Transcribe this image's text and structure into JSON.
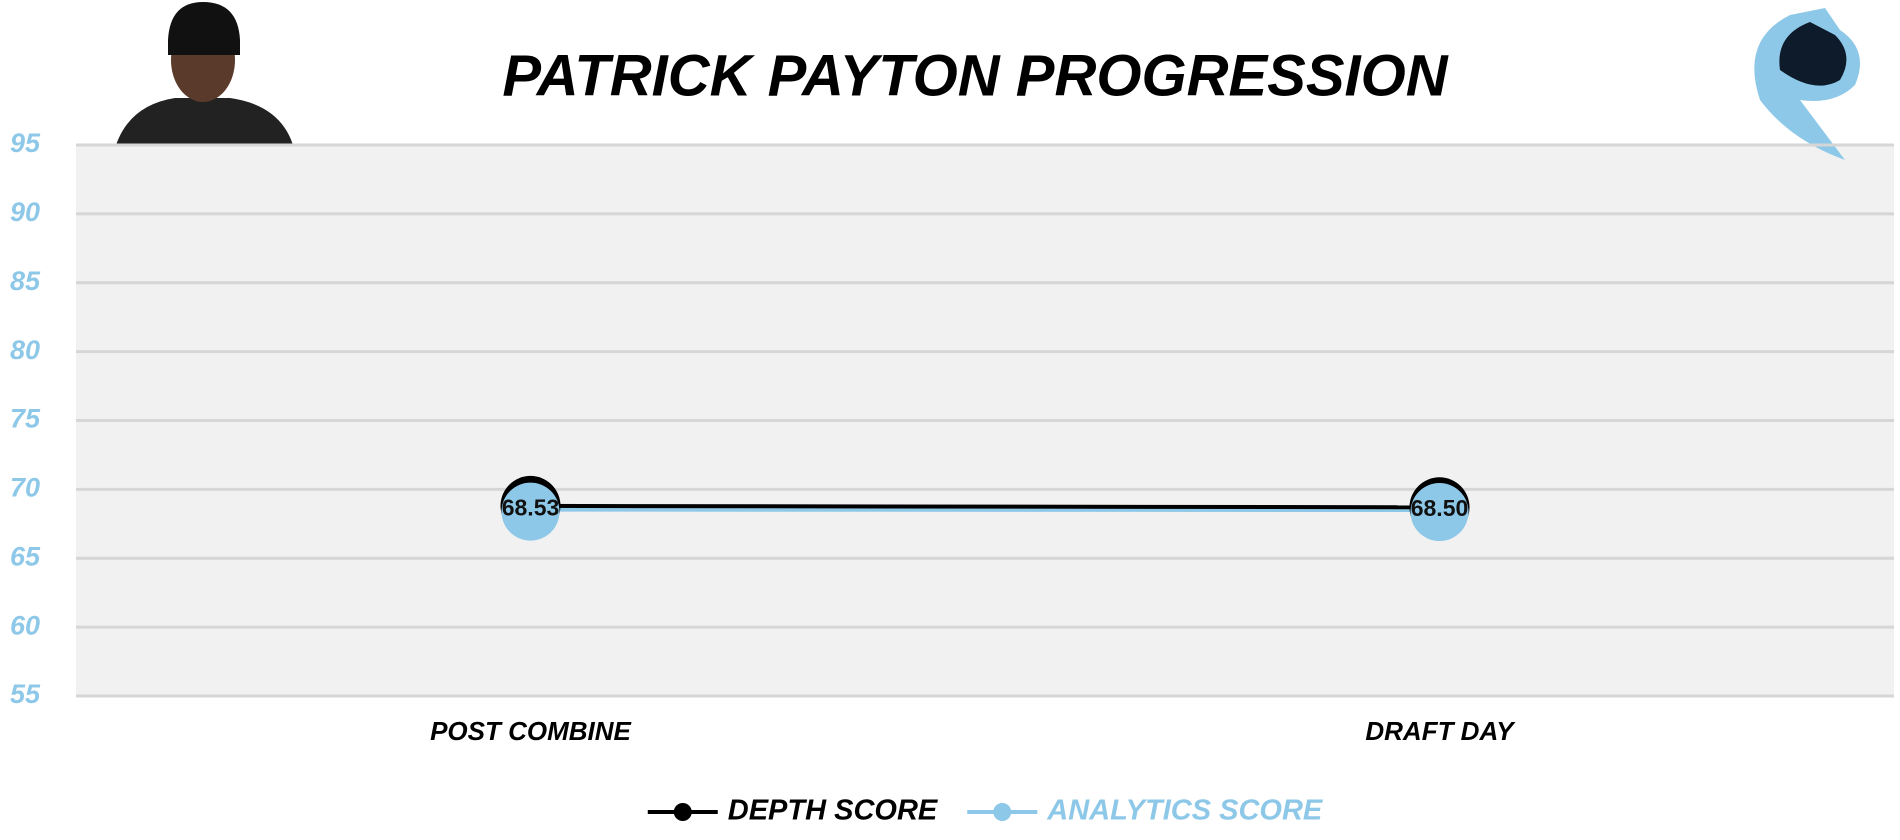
{
  "chart_data": {
    "type": "line",
    "title": "PATRICK PAYTON PROGRESSION",
    "categories": [
      "POST COMBINE",
      "DRAFT DAY"
    ],
    "series": [
      {
        "name": "DEPTH SCORE",
        "color": "#000000",
        "values": [
          68.8,
          68.7
        ]
      },
      {
        "name": "ANALYTICS SCORE",
        "color": "#8ec8e8",
        "values": [
          68.53,
          68.5
        ],
        "value_labels": [
          "68.53",
          "68.50"
        ]
      }
    ],
    "ylim": [
      55,
      95
    ],
    "yticks": [
      55,
      60,
      65,
      70,
      75,
      80,
      85,
      90,
      95
    ],
    "grid": true,
    "legend": "bottom"
  }
}
